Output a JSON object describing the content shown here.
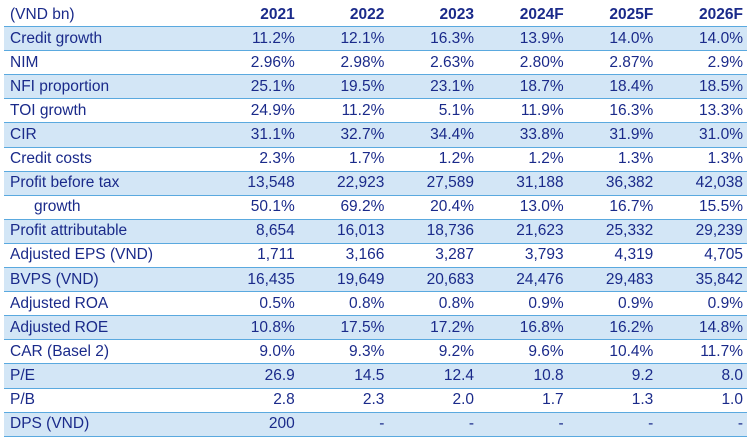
{
  "table": {
    "header": [
      "(VND bn)",
      "2021",
      "2022",
      "2023",
      "2024F",
      "2025F",
      "2026F"
    ],
    "rows": [
      {
        "label": "Credit growth",
        "values": [
          "11.2%",
          "12.1%",
          "16.3%",
          "13.9%",
          "14.0%",
          "14.0%"
        ],
        "shaded": true,
        "indent": false
      },
      {
        "label": "NIM",
        "values": [
          "2.96%",
          "2.98%",
          "2.63%",
          "2.80%",
          "2.87%",
          "2.9%"
        ],
        "shaded": false,
        "indent": false
      },
      {
        "label": "NFI proportion",
        "values": [
          "25.1%",
          "19.5%",
          "23.1%",
          "18.7%",
          "18.4%",
          "18.5%"
        ],
        "shaded": true,
        "indent": false
      },
      {
        "label": "TOI growth",
        "values": [
          "24.9%",
          "11.2%",
          "5.1%",
          "11.9%",
          "16.3%",
          "13.3%"
        ],
        "shaded": false,
        "indent": false
      },
      {
        "label": "CIR",
        "values": [
          "31.1%",
          "32.7%",
          "34.4%",
          "33.8%",
          "31.9%",
          "31.0%"
        ],
        "shaded": true,
        "indent": false
      },
      {
        "label": "Credit costs",
        "values": [
          "2.3%",
          "1.7%",
          "1.2%",
          "1.2%",
          "1.3%",
          "1.3%"
        ],
        "shaded": false,
        "indent": false
      },
      {
        "label": "Profit before tax",
        "values": [
          "13,548",
          "22,923",
          "27,589",
          "31,188",
          "36,382",
          "42,038"
        ],
        "shaded": true,
        "indent": false
      },
      {
        "label": "growth",
        "values": [
          "50.1%",
          "69.2%",
          "20.4%",
          "13.0%",
          "16.7%",
          "15.5%"
        ],
        "shaded": false,
        "indent": true
      },
      {
        "label": "Profit attributable",
        "values": [
          "8,654",
          "16,013",
          "18,736",
          "21,623",
          "25,332",
          "29,239"
        ],
        "shaded": true,
        "indent": false
      },
      {
        "label": "Adjusted EPS (VND)",
        "values": [
          "1,711",
          "3,166",
          "3,287",
          "3,793",
          "4,319",
          "4,705"
        ],
        "shaded": false,
        "indent": false
      },
      {
        "label": "BVPS (VND)",
        "values": [
          "16,435",
          "19,649",
          "20,683",
          "24,476",
          "29,483",
          "35,842"
        ],
        "shaded": true,
        "indent": false
      },
      {
        "label": "Adjusted ROA",
        "values": [
          "0.5%",
          "0.8%",
          "0.8%",
          "0.9%",
          "0.9%",
          "0.9%"
        ],
        "shaded": false,
        "indent": false
      },
      {
        "label": "Adjusted ROE",
        "values": [
          "10.8%",
          "17.5%",
          "17.2%",
          "16.8%",
          "16.2%",
          "14.8%"
        ],
        "shaded": true,
        "indent": false
      },
      {
        "label": "CAR (Basel 2)",
        "values": [
          "9.0%",
          "9.3%",
          "9.2%",
          "9.6%",
          "10.4%",
          "11.7%"
        ],
        "shaded": false,
        "indent": false
      },
      {
        "label": "P/E",
        "values": [
          "26.9",
          "14.5",
          "12.4",
          "10.8",
          "9.2",
          "8.0"
        ],
        "shaded": true,
        "indent": false
      },
      {
        "label": "P/B",
        "values": [
          "2.8",
          "2.3",
          "2.0",
          "1.7",
          "1.3",
          "1.0"
        ],
        "shaded": false,
        "indent": false
      },
      {
        "label": "DPS (VND)",
        "values": [
          "200",
          "-",
          "-",
          "-",
          "-",
          "-"
        ],
        "shaded": true,
        "indent": false
      }
    ]
  },
  "colors": {
    "text": "#1a2a8a",
    "shade": "#d3e6f6",
    "rule": "#5aa9df"
  }
}
